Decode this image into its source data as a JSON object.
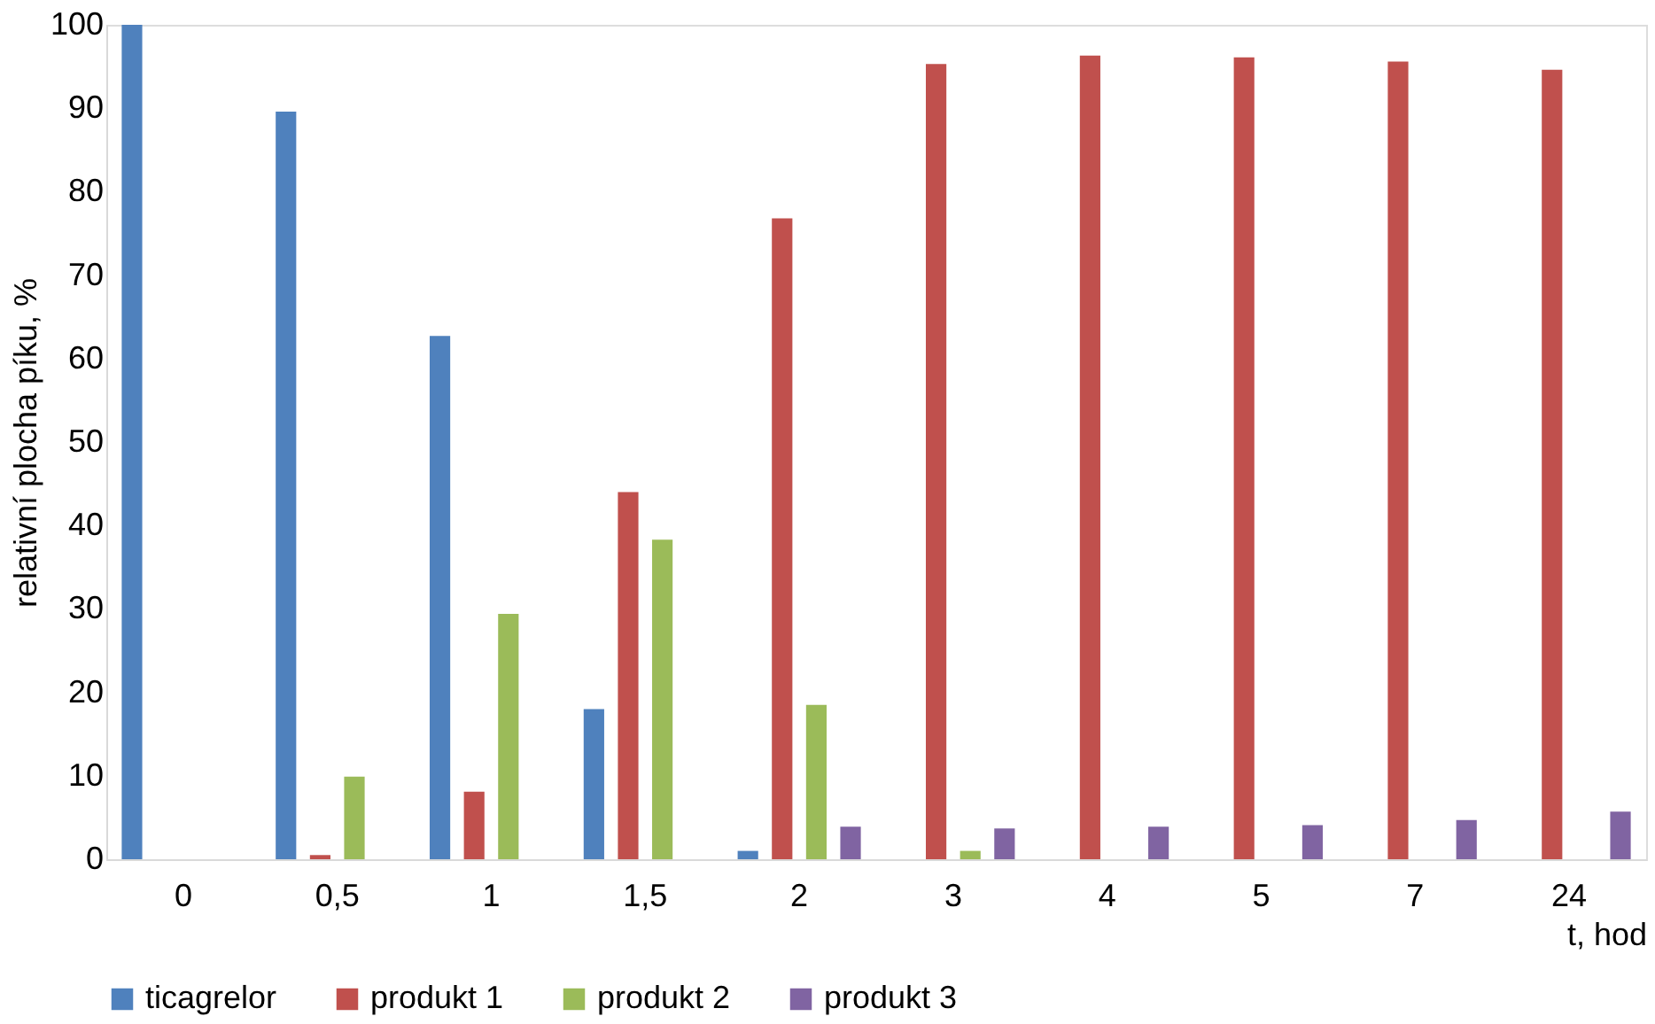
{
  "chart_data": {
    "type": "bar",
    "xlabel": "t, hod",
    "ylabel": "relativní plocha píku, %",
    "categories": [
      "0",
      "0,5",
      "1",
      "1,5",
      "2",
      "3",
      "4",
      "5",
      "7",
      "24"
    ],
    "series": [
      {
        "name": "ticagrelor",
        "color": "#4f81bd",
        "values": [
          100,
          89.6,
          62.7,
          18,
          1,
          0,
          0,
          0,
          0,
          0
        ]
      },
      {
        "name": "produkt 1",
        "color": "#c0504d",
        "values": [
          0,
          0.5,
          8.1,
          44,
          76.8,
          95.3,
          96.3,
          96.1,
          95.6,
          94.6
        ]
      },
      {
        "name": "produkt 2",
        "color": "#9bbb59",
        "values": [
          0,
          9.9,
          29.4,
          38.3,
          18.5,
          1,
          0,
          0,
          0,
          0
        ]
      },
      {
        "name": "produkt 3",
        "color": "#8064a2",
        "values": [
          0,
          0,
          0,
          0,
          3.9,
          3.7,
          3.9,
          4.1,
          4.7,
          5.7
        ]
      }
    ],
    "ylim": [
      0,
      100
    ],
    "yticks": [
      0,
      10,
      20,
      30,
      40,
      50,
      60,
      70,
      80,
      90,
      100
    ],
    "grid": false,
    "legend": "bottom"
  }
}
